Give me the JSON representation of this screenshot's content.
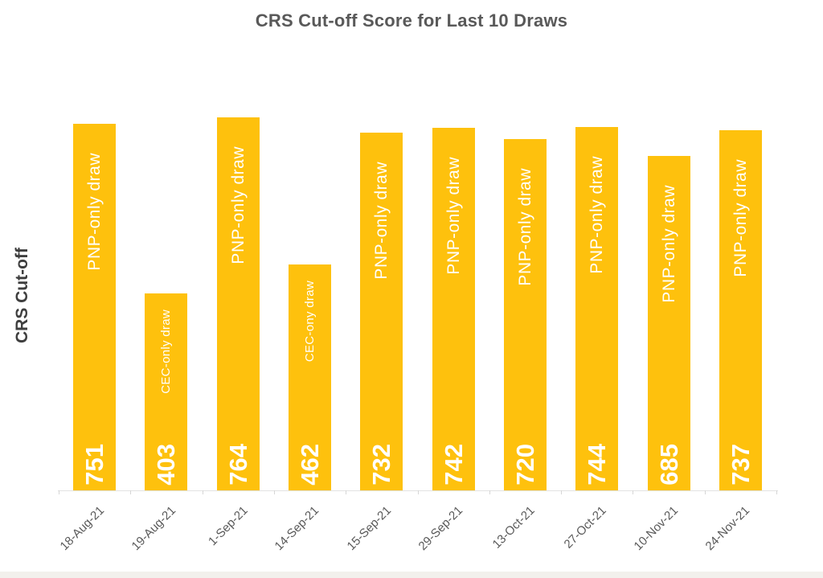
{
  "chart_data": {
    "type": "bar",
    "title": "CRS Cut-off Score for Last 10 Draws",
    "ylabel": "CRS Cut-off",
    "xlabel": "",
    "categories": [
      "18-Aug-21",
      "19-Aug-21",
      "1-Sep-21",
      "14-Sep-21",
      "15-Sep-21",
      "29-Sep-21",
      "13-Oct-21",
      "27-Oct-21",
      "10-Nov-21",
      "24-Nov-21"
    ],
    "values": [
      751,
      403,
      764,
      462,
      732,
      742,
      720,
      744,
      685,
      737
    ],
    "bar_labels": [
      "PNP-only draw",
      "CEC-only draw",
      "PNP-only draw",
      "CEC-ony draw",
      "PNP-only draw",
      "PNP-only draw",
      "PNP-only draw",
      "PNP-only draw",
      "PNP-only draw",
      "PNP-only draw"
    ],
    "ylim": [
      0,
      800
    ],
    "grid": false,
    "legend": "none",
    "label_position": {
      "category": "inside-top-vertical",
      "value": "inside-base-vertical"
    },
    "colors": {
      "bar": "#FEC10D",
      "bar_label_text": "#FFFFFF",
      "title_text": "#595959",
      "axis_text": "#595959",
      "axis_line": "#E2E2E2",
      "tick": "#D6D6D6"
    }
  }
}
